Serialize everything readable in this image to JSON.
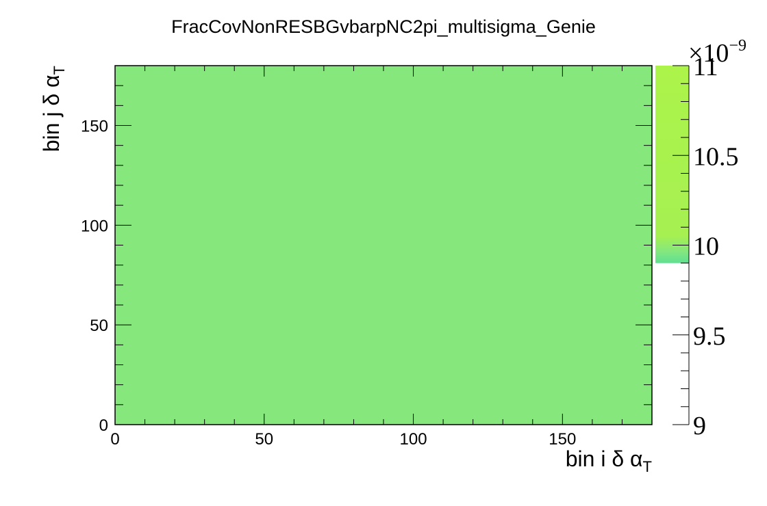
{
  "chart_data": {
    "type": "heatmap",
    "title": "FracCovNonRESBGvbarpNC2pi_multisigma_Genie",
    "xlabel": {
      "text": "bin i δ α",
      "sub": "T"
    },
    "ylabel": {
      "text": "bin j δ α",
      "sub": "T"
    },
    "xlim": [
      0,
      180
    ],
    "ylim": [
      0,
      180
    ],
    "x_ticks": [
      0,
      50,
      100,
      150
    ],
    "y_ticks": [
      0,
      50,
      100,
      150
    ],
    "x_tick_labels": [
      "0",
      "50",
      "100",
      "150"
    ],
    "y_tick_labels": [
      "0",
      "50",
      "100",
      "150"
    ],
    "cells": [
      {
        "x0": 0,
        "x1": 180,
        "y0": 0,
        "y1": 180,
        "value": 9.94e-09
      }
    ],
    "fill_color": "#86e87c",
    "colorbar": {
      "min": 9,
      "max": 11,
      "exponent_label": "×10",
      "exponent_sup": "−9",
      "ticks": [
        9,
        9.5,
        10,
        10.5,
        11
      ],
      "tick_labels": [
        "9",
        "9.5",
        "10",
        "10.5",
        "11"
      ],
      "filled_from": 9.9,
      "stops": [
        {
          "value": 9.9,
          "color": "#5ee092"
        },
        {
          "value": 9.97,
          "color": "#86e87c"
        },
        {
          "value": 10.05,
          "color": "#a6f052"
        },
        {
          "value": 11,
          "color": "#acf44a"
        }
      ]
    },
    "grid": false
  }
}
